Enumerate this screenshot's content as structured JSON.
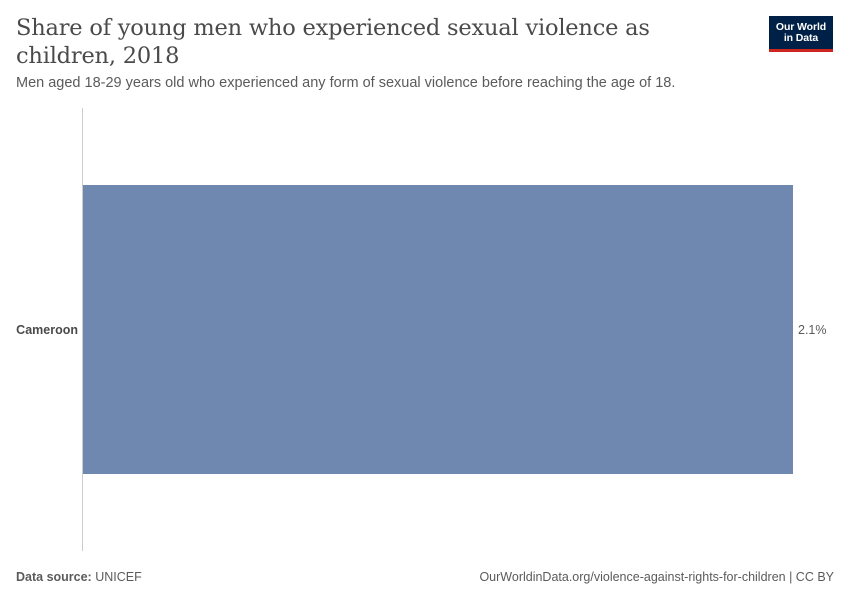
{
  "title": "Share of young men who experienced sexual violence as children, 2018",
  "subtitle": "Men aged 18-29 years old who experienced any form of sexual violence before reaching the age of 18.",
  "logo": {
    "line1": "Our World",
    "line2": "in Data"
  },
  "footer": {
    "source_label": "Data source:",
    "source_value": "UNICEF",
    "url": "OurWorldinData.org/violence-against-rights-for-children | CC BY"
  },
  "colors": {
    "bar": "#6f88b0",
    "axis": "#cccccc",
    "logo_bg": "#002147",
    "logo_accent": "#ce261e"
  },
  "chart_data": {
    "type": "bar",
    "orientation": "horizontal",
    "categories": [
      "Cameroon"
    ],
    "values": [
      2.1
    ],
    "value_labels": [
      "2.1%"
    ],
    "unit": "%",
    "xlim": [
      0,
      2.1
    ]
  }
}
